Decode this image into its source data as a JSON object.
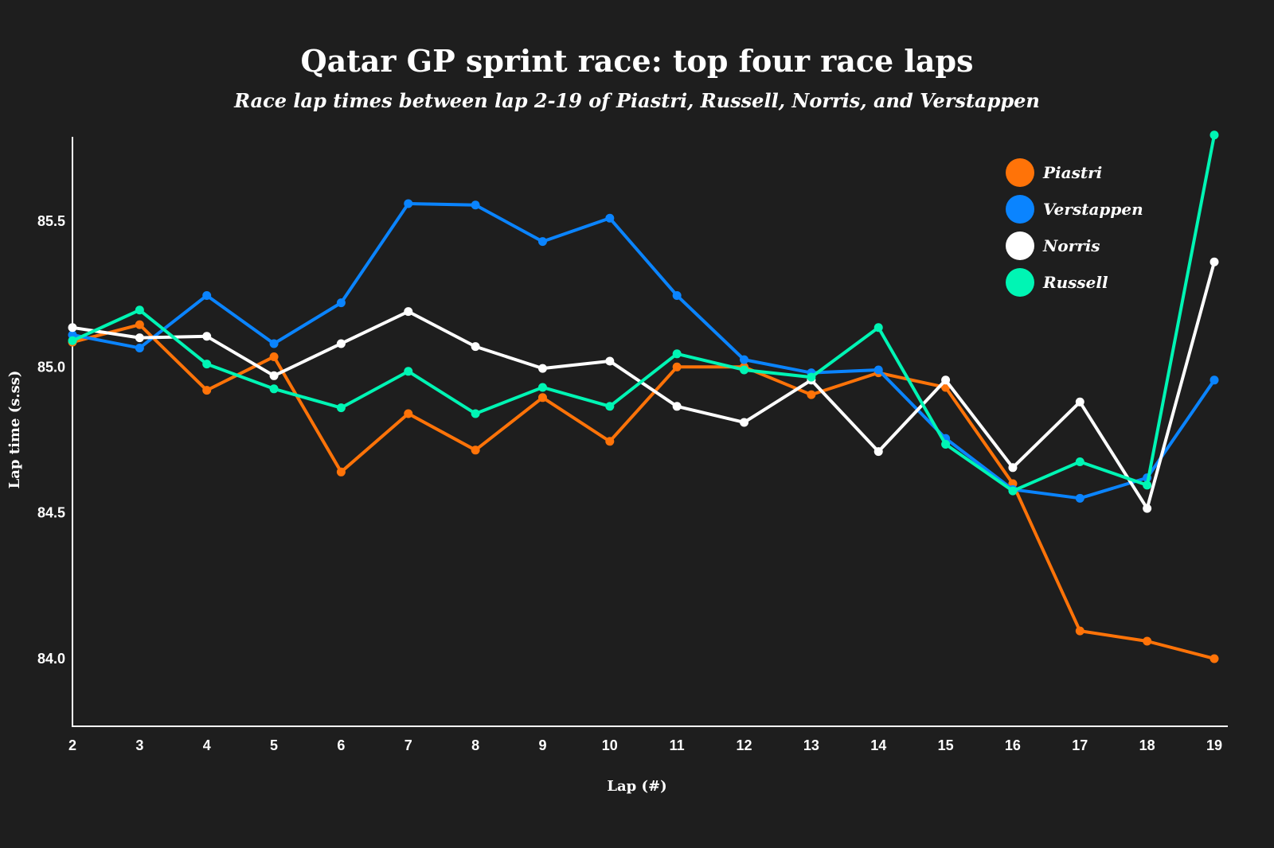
{
  "chart_data": {
    "type": "line",
    "title": "Qatar GP sprint race: top four race laps",
    "subtitle": "Race lap times between lap 2-19 of Piastri, Russell, Norris, and Verstappen",
    "xlabel": "Lap (#)",
    "ylabel": "Lap time (s.ss)",
    "x": [
      2,
      3,
      4,
      5,
      6,
      7,
      8,
      9,
      10,
      11,
      12,
      13,
      14,
      15,
      16,
      17,
      18,
      19
    ],
    "xticks": [
      "2",
      "3",
      "4",
      "5",
      "6",
      "7",
      "8",
      "9",
      "10",
      "11",
      "12",
      "13",
      "14",
      "15",
      "16",
      "17",
      "18",
      "19"
    ],
    "yticks": [
      "84.0",
      "84.5",
      "85.0",
      "85.5"
    ],
    "ylim": [
      83.77,
      85.79
    ],
    "xlim": [
      2,
      19
    ],
    "grid": false,
    "legend_position": "top-right",
    "series": [
      {
        "name": "Piastri",
        "color": "#ff7308",
        "values": [
          85.085,
          85.145,
          84.92,
          85.035,
          84.64,
          84.84,
          84.715,
          84.895,
          84.745,
          85.0,
          85.0,
          84.905,
          84.98,
          84.93,
          84.6,
          84.095,
          84.06,
          84.0
        ]
      },
      {
        "name": "Verstappen",
        "color": "#0a84ff",
        "values": [
          85.11,
          85.065,
          85.245,
          85.08,
          85.22,
          85.56,
          85.555,
          85.43,
          85.51,
          85.245,
          85.025,
          84.98,
          84.99,
          84.755,
          84.58,
          84.55,
          84.62,
          84.955
        ]
      },
      {
        "name": "Norris",
        "color": "#ffffff",
        "values": [
          85.135,
          85.1,
          85.105,
          84.97,
          85.08,
          85.19,
          85.07,
          84.995,
          85.02,
          84.865,
          84.81,
          84.955,
          84.71,
          84.955,
          84.655,
          84.88,
          84.515,
          85.36
        ]
      },
      {
        "name": "Russell",
        "color": "#00f5b4",
        "values": [
          85.09,
          85.195,
          85.01,
          84.925,
          84.86,
          84.985,
          84.84,
          84.93,
          84.865,
          85.045,
          84.99,
          84.965,
          85.135,
          84.735,
          84.575,
          84.675,
          84.595,
          85.795
        ]
      }
    ]
  }
}
